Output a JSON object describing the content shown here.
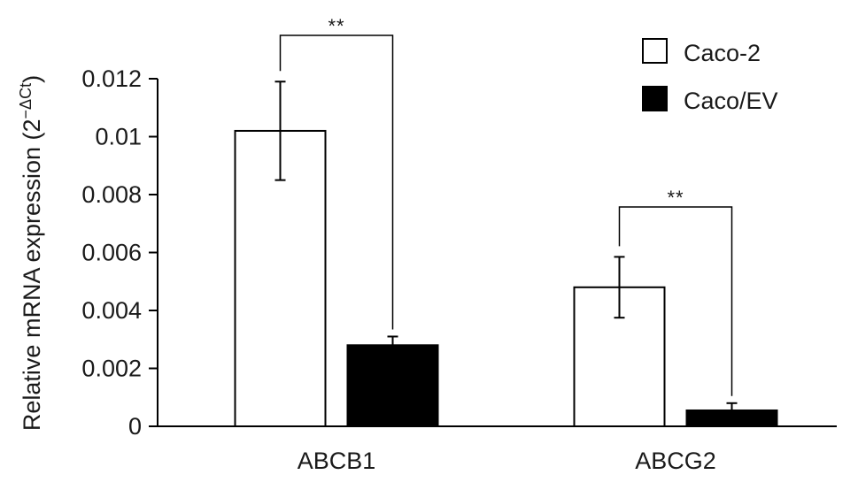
{
  "chart_data": {
    "type": "bar",
    "categories": [
      "ABCB1",
      "ABCG2"
    ],
    "series": [
      {
        "name": "Caco-2",
        "values": [
          0.0102,
          0.0048
        ],
        "errors": [
          0.0017,
          0.00105
        ],
        "fill": "#ffffff"
      },
      {
        "name": "Caco/EV",
        "values": [
          0.0028,
          0.00055
        ],
        "errors": [
          0.0003,
          0.00025
        ],
        "fill": "#000000"
      }
    ],
    "ylabel": "Relative mRNA expression (2",
    "ylabel_exponent": "−ΔCt",
    "ylabel_close": ")",
    "ylim": [
      0,
      0.012
    ],
    "yticks": [
      0,
      0.002,
      0.004,
      0.006,
      0.008,
      0.01,
      0.012
    ],
    "ytick_labels": [
      "0",
      "0.002",
      "0.004",
      "0.006",
      "0.008",
      "0.01",
      "0.012"
    ],
    "significance": [
      {
        "category": "ABCB1",
        "label": "**"
      },
      {
        "category": "ABCG2",
        "label": "**"
      }
    ],
    "legend_position": "top-right",
    "grid": false
  }
}
